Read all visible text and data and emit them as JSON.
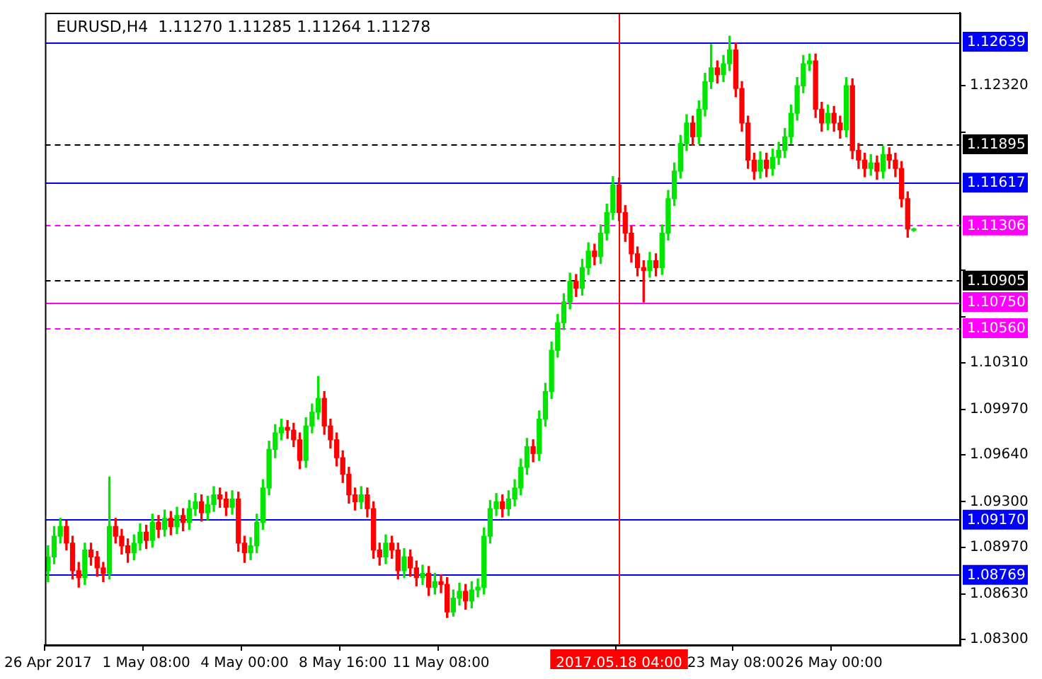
{
  "chart_data": {
    "type": "candlestick",
    "title": "EURUSD,H4  1.11270 1.11285 1.11264 1.11278",
    "categories": [
      "26 Apr 2017",
      null,
      null,
      null,
      null,
      null,
      null,
      null,
      null,
      null,
      null,
      null,
      null,
      null,
      null,
      null,
      "1 May 08:00",
      null,
      null,
      null,
      null,
      null,
      null,
      null,
      null,
      null,
      null,
      null,
      null,
      null,
      null,
      null,
      "4 May 00:00",
      null,
      null,
      null,
      null,
      null,
      null,
      null,
      null,
      null,
      null,
      null,
      null,
      null,
      null,
      null,
      "8 May 16:00",
      null,
      null,
      null,
      null,
      null,
      null,
      null,
      null,
      null,
      null,
      null,
      null,
      null,
      null,
      null,
      "11 May 08:00",
      null,
      null,
      null,
      null,
      null,
      null,
      null,
      null,
      null,
      null,
      null,
      null,
      null,
      null,
      null,
      null,
      null,
      null,
      null,
      null,
      null,
      null,
      null,
      null,
      null,
      null,
      null,
      null,
      "2017.05.18 04:00",
      null,
      null,
      null,
      null,
      null,
      null,
      null,
      null,
      null,
      null,
      null,
      null,
      null,
      null,
      null,
      null,
      null,
      null,
      "23 May 08:00",
      null,
      null,
      null,
      null,
      null,
      null,
      null,
      null,
      null,
      null,
      null,
      null,
      null,
      null,
      null,
      "26 May 00:00",
      null,
      null,
      null,
      null,
      null,
      null,
      null,
      null,
      null,
      null,
      null,
      null,
      null,
      null,
      null,
      null,
      null,
      null,
      null,
      null
    ],
    "ohlc": [
      [
        1.088,
        1.0898,
        1.0872,
        1.089
      ],
      [
        1.089,
        1.0912,
        1.0885,
        1.0905
      ],
      [
        1.0905,
        1.0918,
        1.09,
        1.0912
      ],
      [
        1.0912,
        1.0916,
        1.0895,
        1.09
      ],
      [
        1.09,
        1.0905,
        1.0874,
        1.088
      ],
      [
        1.088,
        1.0886,
        1.0868,
        1.0875
      ],
      [
        1.0875,
        1.09,
        1.087,
        1.0895
      ],
      [
        1.0895,
        1.09,
        1.0884,
        1.089
      ],
      [
        1.089,
        1.0894,
        1.0876,
        1.0882
      ],
      [
        1.0882,
        1.0886,
        1.0872,
        1.0878
      ],
      [
        1.0878,
        1.0948,
        1.0874,
        1.0912
      ],
      [
        1.0912,
        1.0918,
        1.09,
        1.0905
      ],
      [
        1.0905,
        1.091,
        1.0892,
        1.0898
      ],
      [
        1.0898,
        1.0903,
        1.0886,
        1.0893
      ],
      [
        1.0893,
        1.0906,
        1.0888,
        1.09
      ],
      [
        1.09,
        1.0914,
        1.0895,
        1.0908
      ],
      [
        1.0908,
        1.0913,
        1.0896,
        1.0902
      ],
      [
        1.0902,
        1.0921,
        1.0897,
        1.0915
      ],
      [
        1.0915,
        1.092,
        1.0904,
        1.091
      ],
      [
        1.091,
        1.0924,
        1.0905,
        1.0918
      ],
      [
        1.0918,
        1.0923,
        1.0906,
        1.0912
      ],
      [
        1.0912,
        1.0926,
        1.0907,
        1.092
      ],
      [
        1.092,
        1.0925,
        1.0909,
        1.0915
      ],
      [
        1.0915,
        1.0931,
        1.091,
        1.0925
      ],
      [
        1.0925,
        1.0936,
        1.092,
        1.093
      ],
      [
        1.093,
        1.0935,
        1.0916,
        1.0922
      ],
      [
        1.0922,
        1.0934,
        1.0917,
        1.0928
      ],
      [
        1.0928,
        1.0941,
        1.0923,
        1.0935
      ],
      [
        1.0935,
        1.094,
        1.0926,
        1.0932
      ],
      [
        1.0932,
        1.0937,
        1.092,
        1.0926
      ],
      [
        1.0926,
        1.0938,
        1.0921,
        1.0932
      ],
      [
        1.0932,
        1.0937,
        1.0894,
        1.09
      ],
      [
        1.09,
        1.0905,
        1.0886,
        1.0893
      ],
      [
        1.0893,
        1.0904,
        1.0888,
        1.0898
      ],
      [
        1.0898,
        1.0921,
        1.0893,
        1.0915
      ],
      [
        1.0915,
        1.0946,
        1.091,
        1.094
      ],
      [
        1.094,
        1.0974,
        1.0935,
        1.0968
      ],
      [
        1.0968,
        1.0986,
        1.0962,
        1.098
      ],
      [
        1.098,
        1.099,
        1.0975,
        1.0984
      ],
      [
        1.0984,
        1.0989,
        1.0976,
        1.0982
      ],
      [
        1.0982,
        1.0987,
        1.097,
        1.0975
      ],
      [
        1.0975,
        1.098,
        1.0954,
        1.096
      ],
      [
        1.096,
        1.0991,
        1.0955,
        1.0985
      ],
      [
        1.0985,
        1.1001,
        1.098,
        1.0995
      ],
      [
        1.0995,
        1.1021,
        1.099,
        1.1005
      ],
      [
        1.1005,
        1.101,
        1.0979,
        1.0985
      ],
      [
        1.0985,
        1.099,
        1.0969,
        1.0975
      ],
      [
        1.0975,
        1.098,
        1.0956,
        1.0962
      ],
      [
        1.0962,
        1.0967,
        1.0944,
        1.095
      ],
      [
        1.095,
        1.0955,
        1.0929,
        1.0935
      ],
      [
        1.0935,
        1.094,
        1.0924,
        1.093
      ],
      [
        1.093,
        1.0941,
        1.0925,
        1.0935
      ],
      [
        1.0935,
        1.094,
        1.0919,
        1.0925
      ],
      [
        1.0925,
        1.093,
        1.0889,
        1.0895
      ],
      [
        1.0895,
        1.09,
        1.0884,
        1.089
      ],
      [
        1.089,
        1.0906,
        1.0885,
        1.09
      ],
      [
        1.09,
        1.0905,
        1.0889,
        1.0895
      ],
      [
        1.0895,
        1.09,
        1.0874,
        1.088
      ],
      [
        1.088,
        1.0896,
        1.0875,
        1.089
      ],
      [
        1.089,
        1.0895,
        1.0876,
        1.0882
      ],
      [
        1.0882,
        1.0887,
        1.0869,
        1.0875
      ],
      [
        1.0875,
        1.0884,
        1.087,
        1.0878
      ],
      [
        1.0878,
        1.0883,
        1.0862,
        1.0868
      ],
      [
        1.0868,
        1.0878,
        1.0863,
        1.0872
      ],
      [
        1.0872,
        1.0877,
        1.0864,
        1.087
      ],
      [
        1.087,
        1.0875,
        1.0846,
        1.085
      ],
      [
        1.085,
        1.0866,
        1.0847,
        1.086
      ],
      [
        1.086,
        1.0871,
        1.0855,
        1.0865
      ],
      [
        1.0865,
        1.087,
        1.0852,
        1.0858
      ],
      [
        1.0858,
        1.0872,
        1.0853,
        1.0866
      ],
      [
        1.0866,
        1.0874,
        1.0861,
        1.0868
      ],
      [
        1.0868,
        1.0911,
        1.0863,
        1.0905
      ],
      [
        1.0905,
        1.0931,
        1.09,
        1.0925
      ],
      [
        1.0925,
        1.0936,
        1.092,
        1.093
      ],
      [
        1.093,
        1.0935,
        1.0919,
        1.0925
      ],
      [
        1.0925,
        1.0938,
        1.092,
        1.0932
      ],
      [
        1.0932,
        1.0946,
        1.0927,
        1.094
      ],
      [
        1.094,
        1.0961,
        1.0935,
        1.0955
      ],
      [
        1.0955,
        1.0976,
        1.095,
        1.097
      ],
      [
        1.097,
        1.0975,
        1.0959,
        1.0965
      ],
      [
        1.0965,
        1.0996,
        1.096,
        1.099
      ],
      [
        1.099,
        1.1016,
        1.0985,
        1.101
      ],
      [
        1.101,
        1.1046,
        1.1005,
        1.104
      ],
      [
        1.104,
        1.1066,
        1.1035,
        1.106
      ],
      [
        1.106,
        1.1081,
        1.1055,
        1.1075
      ],
      [
        1.1075,
        1.1096,
        1.107,
        1.109
      ],
      [
        1.109,
        1.1095,
        1.1079,
        1.1085
      ],
      [
        1.1085,
        1.1106,
        1.108,
        1.11
      ],
      [
        1.11,
        1.1118,
        1.1095,
        1.1112
      ],
      [
        1.1112,
        1.1117,
        1.1102,
        1.1108
      ],
      [
        1.1108,
        1.1131,
        1.1103,
        1.1125
      ],
      [
        1.1125,
        1.1146,
        1.112,
        1.114
      ],
      [
        1.114,
        1.1166,
        1.1135,
        1.116
      ],
      [
        1.116,
        1.1165,
        1.1134,
        1.114
      ],
      [
        1.114,
        1.1145,
        1.1119,
        1.1125
      ],
      [
        1.1125,
        1.113,
        1.1104,
        1.111
      ],
      [
        1.111,
        1.1115,
        1.1094,
        1.11
      ],
      [
        1.11,
        1.1105,
        1.1075,
        1.1098
      ],
      [
        1.1098,
        1.1111,
        1.1093,
        1.1105
      ],
      [
        1.1105,
        1.111,
        1.1094,
        1.11
      ],
      [
        1.11,
        1.1131,
        1.1095,
        1.1125
      ],
      [
        1.1125,
        1.1156,
        1.112,
        1.115
      ],
      [
        1.115,
        1.1176,
        1.1145,
        1.117
      ],
      [
        1.117,
        1.1196,
        1.1165,
        1.119
      ],
      [
        1.119,
        1.1211,
        1.1185,
        1.1205
      ],
      [
        1.1205,
        1.121,
        1.1189,
        1.1195
      ],
      [
        1.1195,
        1.1221,
        1.119,
        1.1215
      ],
      [
        1.1215,
        1.1241,
        1.121,
        1.1235
      ],
      [
        1.1235,
        1.1262,
        1.123,
        1.1245
      ],
      [
        1.1245,
        1.125,
        1.1234,
        1.124
      ],
      [
        1.124,
        1.1254,
        1.1235,
        1.1248
      ],
      [
        1.1248,
        1.1268,
        1.1243,
        1.1258
      ],
      [
        1.1258,
        1.1263,
        1.1224,
        1.123
      ],
      [
        1.123,
        1.1235,
        1.1199,
        1.1205
      ],
      [
        1.1205,
        1.121,
        1.1172,
        1.1178
      ],
      [
        1.1178,
        1.1183,
        1.1164,
        1.117
      ],
      [
        1.117,
        1.1184,
        1.1165,
        1.1178
      ],
      [
        1.1178,
        1.1183,
        1.1166,
        1.1172
      ],
      [
        1.1172,
        1.1186,
        1.1167,
        1.118
      ],
      [
        1.118,
        1.1191,
        1.1175,
        1.1185
      ],
      [
        1.1185,
        1.1201,
        1.118,
        1.1195
      ],
      [
        1.1195,
        1.1218,
        1.119,
        1.1212
      ],
      [
        1.1212,
        1.1238,
        1.1207,
        1.1232
      ],
      [
        1.1232,
        1.1254,
        1.1227,
        1.1248
      ],
      [
        1.1248,
        1.1255,
        1.1243,
        1.125
      ],
      [
        1.125,
        1.1255,
        1.1209,
        1.1215
      ],
      [
        1.1215,
        1.122,
        1.1199,
        1.1205
      ],
      [
        1.1205,
        1.1218,
        1.12,
        1.1212
      ],
      [
        1.1212,
        1.1217,
        1.1199,
        1.1205
      ],
      [
        1.1205,
        1.121,
        1.1194,
        1.12
      ],
      [
        1.12,
        1.1238,
        1.1195,
        1.1232
      ],
      [
        1.1232,
        1.1237,
        1.1179,
        1.1185
      ],
      [
        1.1185,
        1.119,
        1.1172,
        1.1178
      ],
      [
        1.1178,
        1.1183,
        1.1166,
        1.1172
      ],
      [
        1.1172,
        1.1182,
        1.1167,
        1.1176
      ],
      [
        1.1176,
        1.1181,
        1.1164,
        1.117
      ],
      [
        1.117,
        1.1188,
        1.1165,
        1.1182
      ],
      [
        1.1182,
        1.1187,
        1.1172,
        1.1178
      ],
      [
        1.1178,
        1.1183,
        1.1166,
        1.1172
      ],
      [
        1.1172,
        1.1177,
        1.1144,
        1.115
      ],
      [
        1.115,
        1.1155,
        1.1122,
        1.1128
      ],
      [
        1.1127,
        1.11285,
        1.11264,
        1.11278
      ],
      null,
      null,
      null,
      null,
      null,
      null,
      null
    ],
    "colors": [
      "#00e600",
      "#00e600",
      "#00e600",
      "#ff0000",
      "#ff0000",
      "#ff0000",
      "#00e600",
      "#ff0000",
      "#ff0000",
      "#ff0000",
      "#00e600",
      "#ff0000",
      "#ff0000",
      "#ff0000",
      "#00e600",
      "#00e600",
      "#ff0000",
      "#00e600",
      "#ff0000",
      "#00e600",
      "#ff0000",
      "#00e600",
      "#ff0000",
      "#00e600",
      "#00e600",
      "#ff0000",
      "#00e600",
      "#00e600",
      "#ff0000",
      "#ff0000",
      "#00e600",
      "#ff0000",
      "#ff0000",
      "#00e600",
      "#00e600",
      "#00e600",
      "#00e600",
      "#00e600",
      "#00e600",
      "#ff0000",
      "#ff0000",
      "#ff0000",
      "#00e600",
      "#00e600",
      "#00e600",
      "#ff0000",
      "#ff0000",
      "#ff0000",
      "#ff0000",
      "#ff0000",
      "#ff0000",
      "#00e600",
      "#ff0000",
      "#ff0000",
      "#ff0000",
      "#00e600",
      "#ff0000",
      "#ff0000",
      "#00e600",
      "#ff0000",
      "#ff0000",
      "#00e600",
      "#ff0000",
      "#00e600",
      "#ff0000",
      "#ff0000",
      "#00e600",
      "#00e600",
      "#ff0000",
      "#00e600",
      "#00e600",
      "#00e600",
      "#00e600",
      "#00e600",
      "#ff0000",
      "#00e600",
      "#00e600",
      "#00e600",
      "#00e600",
      "#ff0000",
      "#00e600",
      "#00e600",
      "#00e600",
      "#00e600",
      "#00e600",
      "#00e600",
      "#ff0000",
      "#00e600",
      "#00e600",
      "#ff0000",
      "#00e600",
      "#00e600",
      "#00e600",
      "#ff0000",
      "#ff0000",
      "#ff0000",
      "#ff0000",
      "#ff0000",
      "#00e600",
      "#ff0000",
      "#00e600",
      "#00e600",
      "#00e600",
      "#00e600",
      "#00e600",
      "#ff0000",
      "#00e600",
      "#00e600",
      "#00e600",
      "#ff0000",
      "#00e600",
      "#00e600",
      "#ff0000",
      "#ff0000",
      "#ff0000",
      "#ff0000",
      "#00e600",
      "#ff0000",
      "#00e600",
      "#00e600",
      "#00e600",
      "#00e600",
      "#00e600",
      "#00e600",
      "#00e600",
      "#ff0000",
      "#ff0000",
      "#00e600",
      "#ff0000",
      "#ff0000",
      "#00e600",
      "#ff0000",
      "#ff0000",
      "#ff0000",
      "#00e600",
      "#ff0000",
      "#00e600",
      "#ff0000",
      "#ff0000",
      "#ff0000",
      "#ff0000",
      "#00e600",
      null,
      null,
      null,
      null,
      null,
      null,
      null
    ],
    "ylim": [
      1.0826,
      1.1285
    ],
    "yticks": [
      {
        "value": 1.083,
        "label": "1.08300"
      },
      {
        "value": 1.0863,
        "label": "1.08630"
      },
      {
        "value": 1.0897,
        "label": "1.08970"
      },
      {
        "value": 1.093,
        "label": "1.09300"
      },
      {
        "value": 1.0964,
        "label": "1.09640"
      },
      {
        "value": 1.0997,
        "label": "1.09970"
      },
      {
        "value": 1.1031,
        "label": "1.10310"
      },
      {
        "value": 1.1064,
        "label": null
      },
      {
        "value": 1.1098,
        "label": null
      },
      {
        "value": 1.1198,
        "label": null
      },
      {
        "value": 1.1232,
        "label": "1.12320"
      }
    ],
    "ref_lines": [
      {
        "axis": "y",
        "value": 1.12639,
        "label": "1.12639",
        "color": "#0000ff",
        "line_style": "solid"
      },
      {
        "axis": "y",
        "value": 1.11895,
        "label": "1.11895",
        "color": "#000000",
        "line_style": "dashed"
      },
      {
        "axis": "y",
        "value": 1.11617,
        "label": "1.11617",
        "color": "#0000ff",
        "line_style": "solid"
      },
      {
        "axis": "y",
        "value": 1.11306,
        "label": "1.11306",
        "color": "#ff00ff",
        "line_style": "dashed"
      },
      {
        "axis": "y",
        "value": 1.10905,
        "label": "1.10905",
        "color": "#000000",
        "line_style": "dashed"
      },
      {
        "axis": "y",
        "value": 1.1075,
        "label": "1.10750",
        "color": "#ff00ff",
        "line_style": "solid"
      },
      {
        "axis": "y",
        "value": 1.1056,
        "label": "1.10560",
        "color": "#ff00ff",
        "line_style": "dashed"
      },
      {
        "axis": "y",
        "value": 1.0917,
        "label": "1.09170",
        "color": "#0000ff",
        "line_style": "solid"
      },
      {
        "axis": "y",
        "value": 1.08769,
        "label": "1.08769",
        "color": "#0000ff",
        "line_style": "solid"
      },
      {
        "axis": "x",
        "value": "2017.05.18 04:00",
        "color": "#ff0000",
        "line_style": "solid"
      }
    ]
  }
}
